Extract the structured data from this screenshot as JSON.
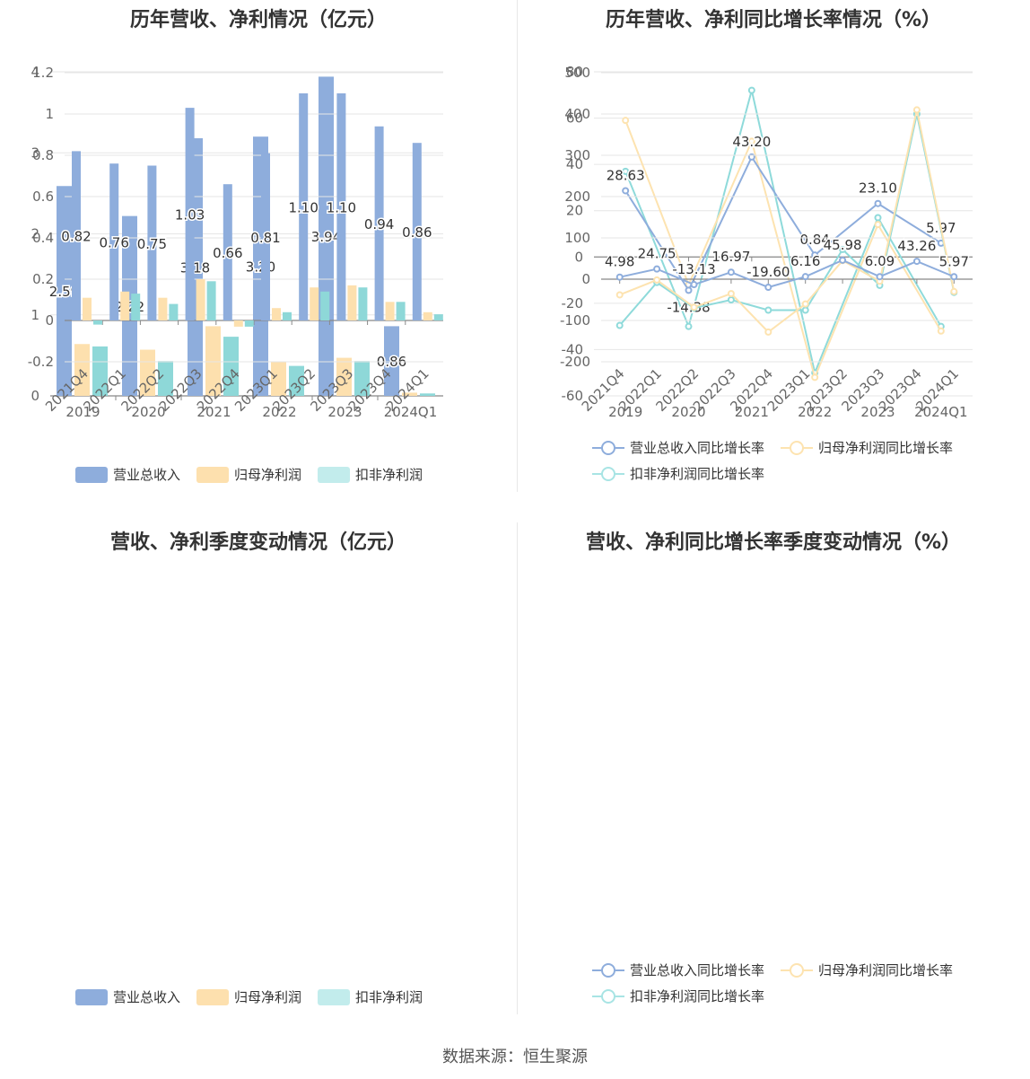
{
  "colors": {
    "revenue": "#8eaddc",
    "net": "#fde0ae",
    "deducted": "#8ed8d8",
    "rev_line": "#8eaddc",
    "net_line": "#fde3b0",
    "ded_line": "#8edada"
  },
  "source": "数据来源：恒生聚源",
  "legend_bar": [
    "营业总收入",
    "归母净利润",
    "扣非净利润"
  ],
  "legend_line": [
    "营业总收入同比增长率",
    "归母净利润同比增长率",
    "扣非净利润同比增长率"
  ],
  "chart_data": [
    {
      "type": "bar",
      "title": "历年营收、净利情况（亿元）",
      "categories": [
        "2019",
        "2020",
        "2021",
        "2022",
        "2023",
        "2024Q1"
      ],
      "ylim": [
        0,
        4
      ],
      "yticks": [
        0,
        1,
        2,
        3,
        4
      ],
      "series": [
        {
          "name": "营业总收入",
          "values": [
            2.59,
            2.22,
            3.18,
            3.2,
            3.94,
            0.86
          ],
          "labels": [
            "2.59",
            "2.22",
            "3.18",
            "3.20",
            "3.94",
            "0.86"
          ]
        },
        {
          "name": "归母净利润",
          "values": [
            0.64,
            0.57,
            0.86,
            0.42,
            0.47,
            0.04
          ]
        },
        {
          "name": "扣非净利润",
          "values": [
            0.61,
            0.43,
            0.73,
            0.37,
            0.43,
            0.03
          ]
        }
      ]
    },
    {
      "type": "line",
      "title": "历年营收、净利同比增长率情况（%）",
      "categories": [
        "2019",
        "2020",
        "2021",
        "2022",
        "2023",
        "2024Q1"
      ],
      "ylim": [
        -60,
        80
      ],
      "yticks": [
        -60,
        -40,
        -20,
        0,
        20,
        40,
        60,
        80
      ],
      "series": [
        {
          "name": "营业总收入同比增长率",
          "values": [
            28.63,
            -14.38,
            43.2,
            0.84,
            23.1,
            5.97
          ],
          "labels": [
            "28.63",
            "-14.38",
            "43.20",
            "0.84",
            "23.10",
            "5.97"
          ]
        },
        {
          "name": "归母净利润同比增长率",
          "values": [
            59,
            -12,
            50,
            -52,
            14,
            -32
          ]
        },
        {
          "name": "扣非净利润同比增长率",
          "values": [
            37,
            -30,
            72,
            -50,
            17,
            -30
          ]
        }
      ]
    },
    {
      "type": "bar",
      "title": "营收、净利季度变动情况（亿元）",
      "categories": [
        "2021Q4",
        "2022Q1",
        "2022Q2",
        "2022Q3",
        "2022Q4",
        "2023Q1",
        "2023Q2",
        "2023Q3",
        "2023Q4",
        "2024Q1"
      ],
      "ylim": [
        -0.2,
        1.2
      ],
      "yticks": [
        -0.2,
        0,
        0.2,
        0.4,
        0.6,
        0.8,
        1,
        1.2
      ],
      "series": [
        {
          "name": "营业总收入",
          "values": [
            0.82,
            0.76,
            0.75,
            1.03,
            0.66,
            0.81,
            1.1,
            1.1,
            0.94,
            0.86
          ],
          "labels": [
            "0.82",
            "0.76",
            "0.75",
            "1.03",
            "0.66",
            "0.81",
            "1.10",
            "1.10",
            "0.94",
            "0.86"
          ]
        },
        {
          "name": "归母净利润",
          "values": [
            0.11,
            0.14,
            0.11,
            0.2,
            -0.03,
            0.06,
            0.16,
            0.17,
            0.09,
            0.04
          ]
        },
        {
          "name": "扣非净利润",
          "values": [
            -0.02,
            0.13,
            0.08,
            0.19,
            -0.03,
            0.04,
            0.14,
            0.16,
            0.09,
            0.03
          ]
        }
      ]
    },
    {
      "type": "line",
      "title": "营收、净利同比增长率季度变动情况（%）",
      "categories": [
        "2021Q4",
        "2022Q1",
        "2022Q2",
        "2022Q3",
        "2022Q4",
        "2023Q1",
        "2023Q2",
        "2023Q3",
        "2023Q4",
        "2024Q1"
      ],
      "ylim": [
        -200,
        500
      ],
      "yticks": [
        -200,
        -100,
        0,
        100,
        200,
        300,
        400,
        500
      ],
      "series": [
        {
          "name": "营业总收入同比增长率",
          "values": [
            4.98,
            24.75,
            -13.13,
            16.97,
            -19.6,
            6.16,
            45.98,
            6.09,
            43.26,
            5.97
          ],
          "labels": [
            "4.98",
            "24.75",
            "-13.13",
            "16.97",
            "-19.60",
            "6.16",
            "45.98",
            "6.09",
            "43.26",
            "5.97"
          ]
        },
        {
          "name": "归母净利润同比增长率",
          "values": [
            -38,
            -2,
            -68,
            -35,
            -128,
            -60,
            45,
            -5,
            410,
            -30
          ]
        },
        {
          "name": "扣非净利润同比增长率",
          "values": [
            -112,
            -8,
            -70,
            -50,
            -75,
            -75,
            72,
            -15,
            400,
            -32
          ]
        }
      ]
    }
  ]
}
